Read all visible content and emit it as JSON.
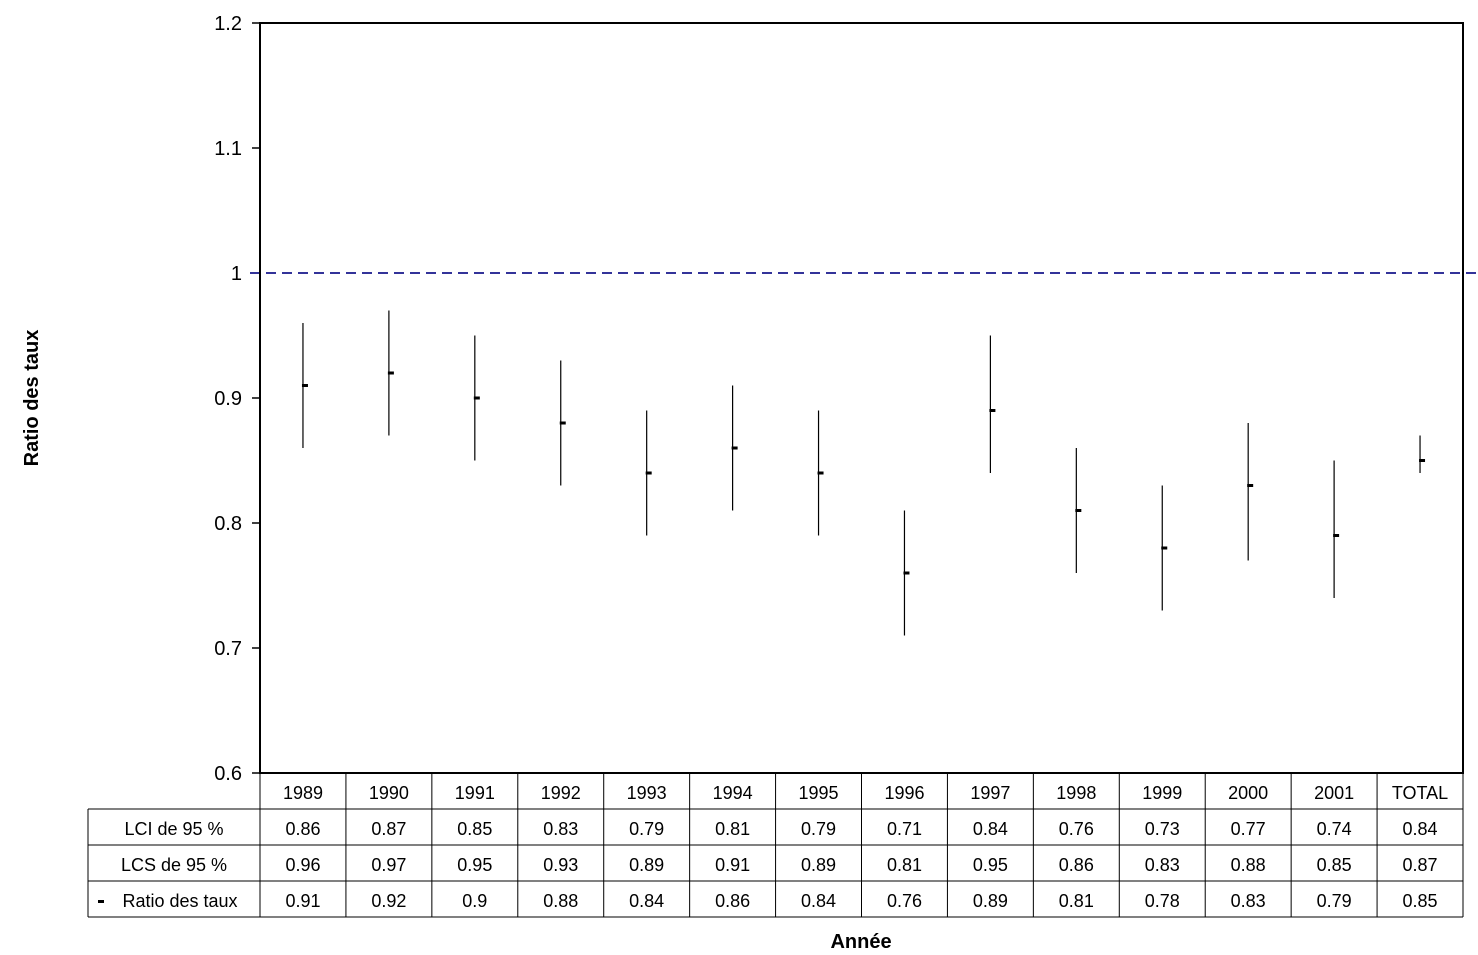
{
  "chart_data": {
    "type": "scatter",
    "variant": "error-bar",
    "ylabel": "Ratio des taux",
    "xlabel": "Année",
    "ylim": [
      0.6,
      1.2
    ],
    "yticks": [
      "0.6",
      "0.7",
      "0.8",
      "0.9",
      "1",
      "1.1",
      "1.2"
    ],
    "categories": [
      "1989",
      "1990",
      "1991",
      "1992",
      "1993",
      "1994",
      "1995",
      "1996",
      "1997",
      "1998",
      "1999",
      "2000",
      "2001",
      "TOTAL"
    ],
    "series": [
      {
        "name": "LCI de 95 %",
        "values": [
          0.86,
          0.87,
          0.85,
          0.83,
          0.79,
          0.81,
          0.79,
          0.71,
          0.84,
          0.76,
          0.73,
          0.77,
          0.74,
          0.84
        ]
      },
      {
        "name": "LCS de 95 %",
        "values": [
          0.96,
          0.97,
          0.95,
          0.93,
          0.89,
          0.91,
          0.89,
          0.81,
          0.95,
          0.86,
          0.83,
          0.88,
          0.85,
          0.87
        ]
      },
      {
        "name": "Ratio des taux",
        "marker": "-",
        "values": [
          0.91,
          0.92,
          0.9,
          0.88,
          0.84,
          0.86,
          0.84,
          0.76,
          0.89,
          0.81,
          0.78,
          0.83,
          0.79,
          0.85
        ]
      }
    ],
    "table_values": [
      [
        "0.86",
        "0.87",
        "0.85",
        "0.83",
        "0.79",
        "0.81",
        "0.79",
        "0.71",
        "0.84",
        "0.76",
        "0.73",
        "0.77",
        "0.74",
        "0.84"
      ],
      [
        "0.96",
        "0.97",
        "0.95",
        "0.93",
        "0.89",
        "0.91",
        "0.89",
        "0.81",
        "0.95",
        "0.86",
        "0.83",
        "0.88",
        "0.85",
        "0.87"
      ],
      [
        "0.91",
        "0.92",
        "0.9",
        "0.88",
        "0.84",
        "0.86",
        "0.84",
        "0.76",
        "0.89",
        "0.81",
        "0.78",
        "0.83",
        "0.79",
        "0.85"
      ]
    ],
    "reference_line": {
      "value": 1.0,
      "style": "dashed",
      "color": "#333399"
    },
    "grid": false,
    "legend": "data-table",
    "colors": {
      "axis": "#000000",
      "reference": "#333399",
      "marker": "#000000"
    }
  }
}
